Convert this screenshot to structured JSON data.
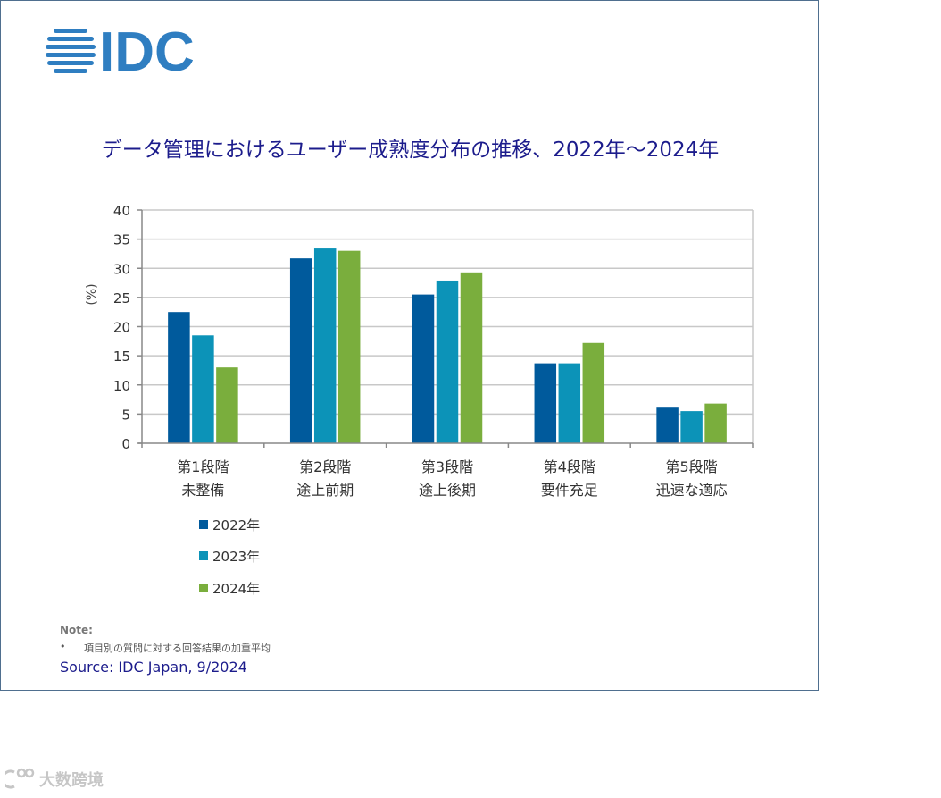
{
  "logo": {
    "text": "IDC",
    "color": "#2f7ec1"
  },
  "chart_data": {
    "type": "bar",
    "title": "データ管理におけるユーザー成熟度分布の推移、2022年～2024年",
    "ylabel": "(%)",
    "ylim": [
      0,
      40
    ],
    "yticks": [
      "0",
      "5",
      "10",
      "15",
      "20",
      "25",
      "30",
      "35",
      "40"
    ],
    "categories": [
      {
        "line1": "第1段階",
        "line2": "未整備"
      },
      {
        "line1": "第2段階",
        "line2": "途上前期"
      },
      {
        "line1": "第3段階",
        "line2": "途上後期"
      },
      {
        "line1": "第4段階",
        "line2": "要件充足"
      },
      {
        "line1": "第5段階",
        "line2": "迅速な適応"
      }
    ],
    "series": [
      {
        "name": "2022年",
        "color": "#005a9c",
        "values": [
          22.5,
          31.7,
          25.5,
          13.7,
          6.1
        ]
      },
      {
        "name": "2023年",
        "color": "#0c93b8",
        "values": [
          18.5,
          33.4,
          27.9,
          13.7,
          5.5
        ]
      },
      {
        "name": "2024年",
        "color": "#7aae3d",
        "values": [
          13.0,
          33.0,
          29.3,
          17.2,
          6.8
        ]
      }
    ],
    "grid": true,
    "legend_position": "bottom-left"
  },
  "note": {
    "title": "Note:",
    "bullet": "•",
    "text": "項目別の質問に対する回答結果の加重平均"
  },
  "source": "Source: IDC Japan, 9/2024",
  "watermark": {
    "text": "大数跨境"
  }
}
